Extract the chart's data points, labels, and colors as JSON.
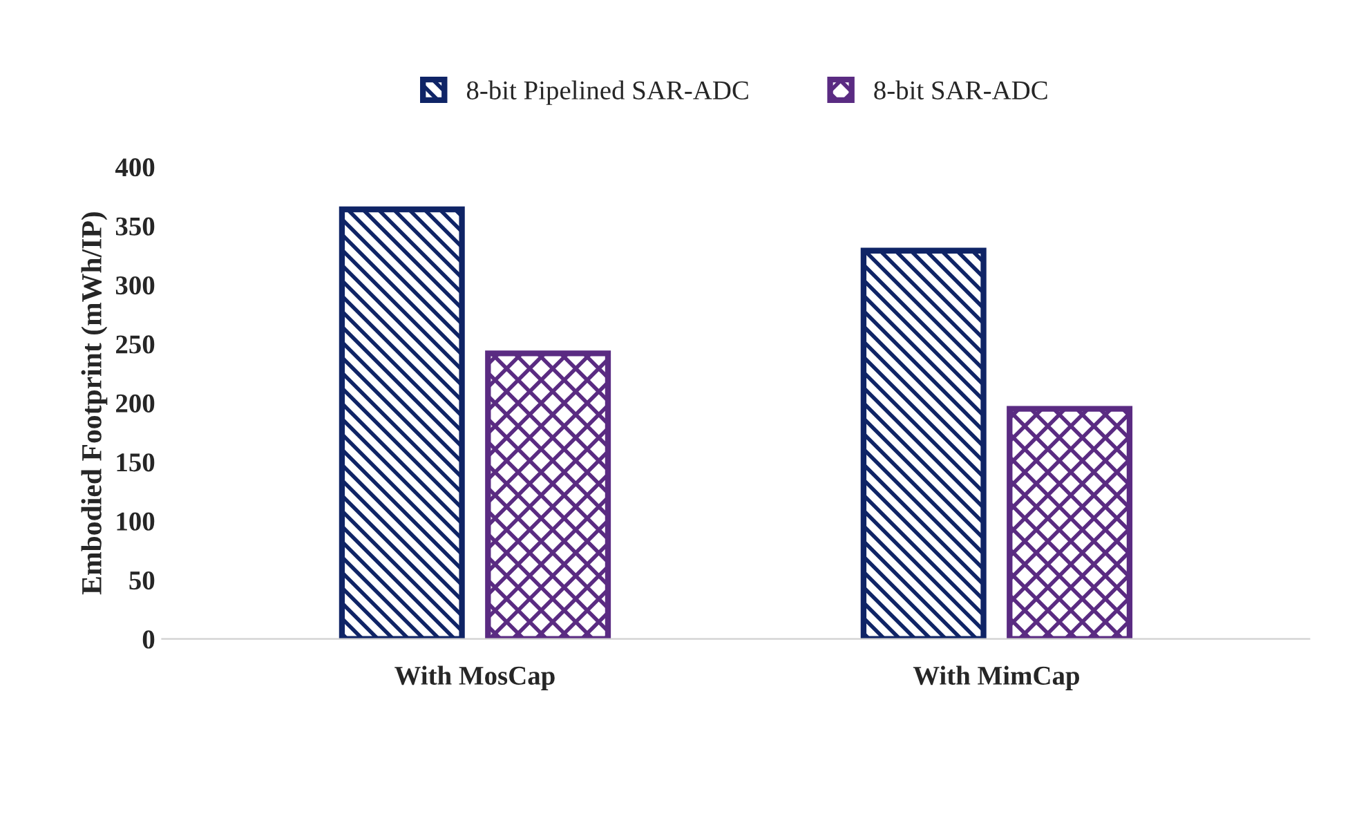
{
  "chart_data": {
    "type": "bar",
    "ylabel": "Embodied Footprint (mWh/IP)",
    "categories": [
      "With MosCap",
      "With MimCap"
    ],
    "series": [
      {
        "name": "8-bit Pipelined SAR-ADC",
        "color": "#0f2466",
        "values": [
          364,
          329
        ]
      },
      {
        "name": "8-bit SAR-ADC",
        "color": "#5a2b82",
        "values": [
          242,
          195
        ]
      }
    ],
    "ylim": [
      0,
      400
    ],
    "yticks": [
      0,
      50,
      100,
      150,
      200,
      250,
      300,
      350,
      400
    ],
    "grid": false,
    "legend": "top"
  }
}
